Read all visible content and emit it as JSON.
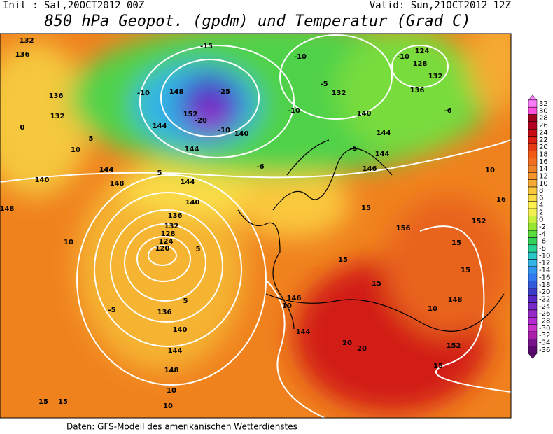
{
  "header": {
    "init": "Init : Sat,20OCT2012 00Z",
    "valid": "Valid: Sun,21OCT2012 12Z",
    "title": "850 hPa Geopot. (gpdm) und Temperatur (Grad C)"
  },
  "map": {
    "contour_labels": [
      132,
      136,
      136,
      132,
      140,
      148,
      144,
      148,
      136,
      132,
      128,
      124,
      120,
      136,
      140,
      144,
      148,
      144,
      140,
      144,
      148,
      152,
      144,
      140,
      140,
      144,
      144,
      146,
      132,
      136,
      128,
      124,
      132,
      152,
      156,
      148,
      152,
      146,
      144,
      -10,
      -10,
      -5,
      -10,
      -10,
      -6,
      -5,
      -6,
      5,
      10,
      10,
      5,
      -5,
      5,
      10,
      10,
      15,
      15,
      15,
      15,
      15,
      15,
      20,
      20,
      10,
      10,
      16,
      15,
      15,
      10,
      -15,
      -25,
      -20,
      -10,
      0,
      5
    ]
  },
  "colorbar": {
    "ticks": [
      32,
      30,
      28,
      26,
      24,
      22,
      20,
      18,
      16,
      14,
      12,
      10,
      8,
      6,
      4,
      2,
      0,
      -2,
      -4,
      -6,
      -8,
      -10,
      -12,
      -14,
      -16,
      -18,
      -20,
      -22,
      -24,
      -26,
      -28,
      -30,
      -32,
      -34,
      -36
    ],
    "colors": [
      "#ff7cff",
      "#ff50e0",
      "#a0001e",
      "#b40020",
      "#c80a14",
      "#dc1e14",
      "#e63c14",
      "#f05a14",
      "#f06e1e",
      "#f08228",
      "#f5962d",
      "#f5aa32",
      "#fac83c",
      "#fadc46",
      "#fff050",
      "#f0f050",
      "#c8f03c",
      "#96e632",
      "#5adc3c",
      "#32d25a",
      "#28d296",
      "#28c8c8",
      "#32b4e6",
      "#3296f0",
      "#3278f0",
      "#325adc",
      "#3c3cc8",
      "#5a28c8",
      "#7828c8",
      "#9628c8",
      "#b428d2",
      "#c832c8",
      "#aa1eaa",
      "#78148c",
      "#5a0a6e"
    ]
  },
  "footer": "Daten: GFS-Modell des amerikanischen Wetterdienstes"
}
